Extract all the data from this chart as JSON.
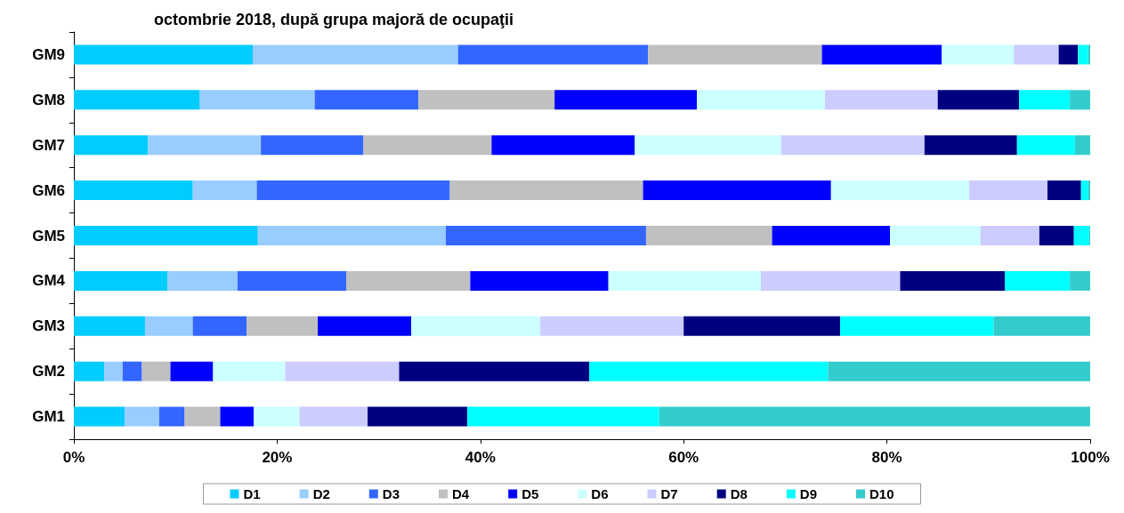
{
  "chart_data": {
    "type": "bar",
    "title": "octombrie 2018, după grupa majoră de ocupaţii",
    "orientation": "horizontal",
    "stacked": true,
    "grid": false,
    "legend": "bottom",
    "categories": [
      "GM9",
      "GM8",
      "GM7",
      "GM6",
      "GM5",
      "GM4",
      "GM3",
      "GM2",
      "GM1"
    ],
    "xlim": [
      0,
      100
    ],
    "xticks": [
      {
        "value": 0,
        "label": "0%"
      },
      {
        "value": 20,
        "label": "20%"
      },
      {
        "value": 40,
        "label": "40%"
      },
      {
        "value": 60,
        "label": "60%"
      },
      {
        "value": 80,
        "label": "80%"
      },
      {
        "value": 100,
        "label": "100%"
      }
    ],
    "series": [
      {
        "name": "D1",
        "color": "#00ccff",
        "values": [
          17.6,
          12.4,
          7.3,
          11.7,
          18.1,
          9.2,
          7.0,
          3.0,
          5.0
        ]
      },
      {
        "name": "D2",
        "color": "#99ccff",
        "values": [
          20.2,
          11.3,
          11.1,
          6.3,
          18.5,
          6.9,
          4.7,
          1.8,
          3.4
        ]
      },
      {
        "name": "D3",
        "color": "#3366ff",
        "values": [
          18.7,
          10.2,
          10.1,
          19.0,
          19.7,
          10.7,
          5.3,
          1.9,
          2.5
        ]
      },
      {
        "name": "D4",
        "color": "#c0c0c0",
        "values": [
          17.1,
          13.4,
          12.6,
          19.0,
          12.4,
          12.2,
          7.0,
          2.8,
          3.5
        ]
      },
      {
        "name": "D5",
        "color": "#0000ff",
        "values": [
          11.8,
          14.0,
          14.1,
          18.5,
          11.6,
          13.6,
          9.2,
          4.2,
          3.3
        ]
      },
      {
        "name": "D6",
        "color": "#ccffff",
        "values": [
          7.1,
          12.6,
          14.4,
          13.6,
          8.9,
          15.0,
          12.7,
          7.1,
          4.5
        ]
      },
      {
        "name": "D7",
        "color": "#ccccff",
        "values": [
          4.4,
          11.1,
          14.1,
          7.7,
          5.8,
          13.7,
          14.1,
          11.2,
          6.7
        ]
      },
      {
        "name": "D8",
        "color": "#000080",
        "values": [
          1.9,
          8.0,
          9.1,
          3.3,
          3.4,
          10.3,
          15.4,
          18.7,
          9.8
        ]
      },
      {
        "name": "D9",
        "color": "#00ffff",
        "values": [
          1.0,
          5.0,
          5.7,
          0.7,
          1.5,
          6.4,
          15.1,
          23.5,
          18.9
        ]
      },
      {
        "name": "D10",
        "color": "#33cccc",
        "values": [
          0.2,
          2.0,
          1.5,
          0.2,
          0.1,
          2.0,
          9.5,
          25.8,
          42.4
        ]
      }
    ]
  }
}
